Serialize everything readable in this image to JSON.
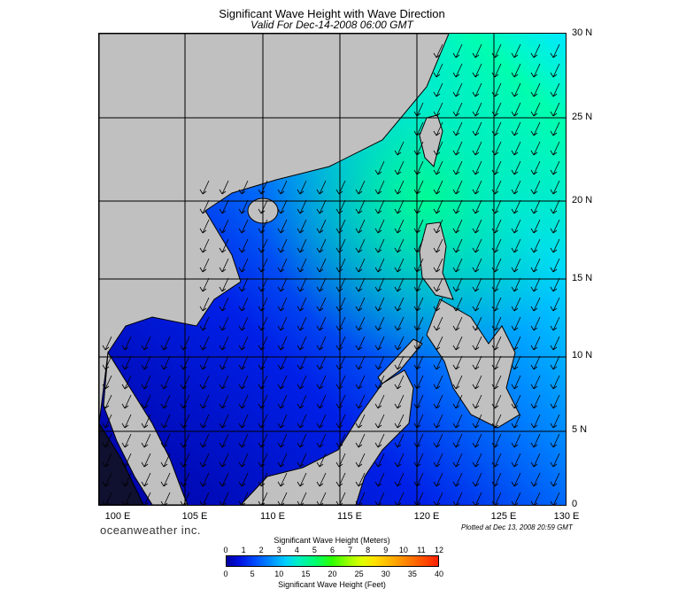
{
  "header": {
    "title": "Significant Wave Height with Wave Direction",
    "subtitle": "Valid For Dec-14-2008 06:00 GMT"
  },
  "axes": {
    "lat_labels": [
      "30 N",
      "25 N",
      "20 N",
      "15 N",
      "10 N",
      "5 N",
      "0"
    ],
    "lon_labels": [
      "100 E",
      "105 E",
      "110 E",
      "115 E",
      "120 E",
      "125 E",
      "130 E"
    ]
  },
  "footer": {
    "brand": "oceanweather inc.",
    "plotted": "Plotted at Dec 13, 2008 20:59 GMT"
  },
  "colorbar": {
    "meters_title": "Significant Wave Height (Meters)",
    "feet_title": "Significant Wave Height (Feet)",
    "meters_ticks": [
      "0",
      "1",
      "2",
      "3",
      "4",
      "5",
      "6",
      "7",
      "8",
      "9",
      "10",
      "11",
      "12"
    ],
    "feet_ticks": [
      "0",
      "5",
      "10",
      "15",
      "20",
      "25",
      "30",
      "35",
      "40"
    ]
  },
  "colors": {
    "land": "#c0c0c0",
    "deep_blue": "#0000c8",
    "mid_blue": "#0064ff",
    "cyan": "#00e0ff",
    "green": "#00ff8c"
  }
}
